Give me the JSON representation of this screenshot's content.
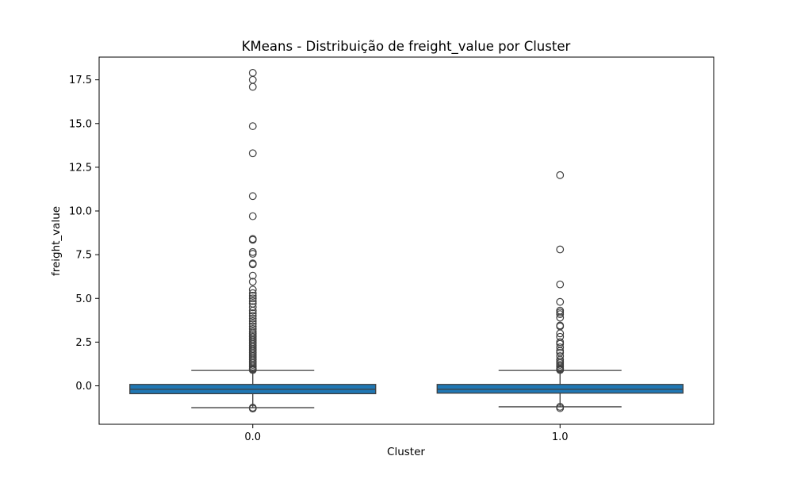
{
  "chart_data": {
    "type": "box",
    "title": "KMeans - Distribuição de freight_value por Cluster",
    "xlabel": "Cluster",
    "ylabel": "freight_value",
    "categories": [
      "0.0",
      "1.0"
    ],
    "ylim": [
      -2.2,
      18.8
    ],
    "yticks": [
      0.0,
      2.5,
      5.0,
      7.5,
      10.0,
      12.5,
      15.0,
      17.5
    ],
    "ytick_labels": [
      "0.0",
      "2.5",
      "5.0",
      "7.5",
      "10.0",
      "12.5",
      "15.0",
      "17.5"
    ],
    "box_color": "#1f77b4",
    "line_color": "#3f3f3f",
    "boxes": [
      {
        "category": "0.0",
        "whisker_low": -1.25,
        "q1": -0.45,
        "median": -0.2,
        "q3": 0.08,
        "whisker_high": 0.88,
        "outliers": [
          17.9,
          17.5,
          17.1,
          14.85,
          13.3,
          10.85,
          9.7,
          8.4,
          8.35,
          7.65,
          7.55,
          7.0,
          6.95,
          6.3,
          5.95,
          5.5,
          5.3,
          5.15,
          5.0,
          4.85,
          4.7,
          4.5,
          4.3,
          4.15,
          4.0,
          3.85,
          3.7,
          3.55,
          3.4,
          3.25,
          3.1,
          3.0,
          2.9,
          2.8,
          2.7,
          2.6,
          2.5,
          2.4,
          2.3,
          2.2,
          2.1,
          2.0,
          1.9,
          1.8,
          1.7,
          1.6,
          1.5,
          1.4,
          1.3,
          1.2,
          1.1,
          1.0,
          0.95,
          0.9,
          -1.25,
          -1.3
        ]
      },
      {
        "category": "1.0",
        "whisker_low": -1.2,
        "q1": -0.42,
        "median": -0.2,
        "q3": 0.08,
        "whisker_high": 0.88,
        "outliers": [
          12.05,
          7.8,
          5.8,
          4.8,
          4.3,
          4.2,
          4.1,
          3.9,
          3.45,
          3.4,
          3.0,
          2.8,
          2.5,
          2.4,
          2.2,
          2.0,
          1.9,
          1.7,
          1.5,
          1.4,
          1.3,
          1.2,
          1.1,
          1.0,
          0.95,
          0.9,
          -1.2,
          -1.28
        ]
      }
    ]
  }
}
